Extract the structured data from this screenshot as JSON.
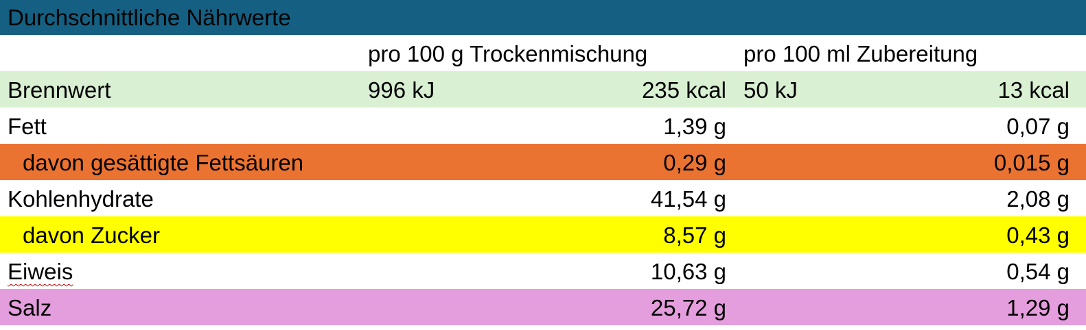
{
  "title": "Durchschnittliche Nährwerte",
  "header": {
    "dry": "pro 100 g Trockenmischung",
    "prepared": "pro 100 ml Zubereitung"
  },
  "rows": [
    {
      "label": "Brennwert",
      "dry_kj": "996 kJ",
      "dry": "235 kcal",
      "prep_kj": "50 kJ",
      "prep": "13 kcal",
      "color": "#d9f0d3"
    },
    {
      "label": "Fett",
      "dry": "1,39 g",
      "prep": "0,07 g",
      "color": "#ffffff"
    },
    {
      "label": "davon gesättigte Fettsäuren",
      "dry": "0,29 g",
      "prep": "0,015 g",
      "color": "#eb7332"
    },
    {
      "label": "Kohlenhydrate",
      "dry": "41,54 g",
      "prep": "2,08 g",
      "color": "#ffffff"
    },
    {
      "label": "davon Zucker",
      "dry": "8,57 g",
      "prep": "0,43 g",
      "color": "#ffff00"
    },
    {
      "label": "Eiweis",
      "dry": "10,63 g",
      "prep": "0,54 g",
      "color": "#ffffff"
    },
    {
      "label": "Salz",
      "dry": "25,72 g",
      "prep": "1,29 g",
      "color": "#e59edd"
    }
  ],
  "colors": {
    "title_bar": "#156082"
  }
}
